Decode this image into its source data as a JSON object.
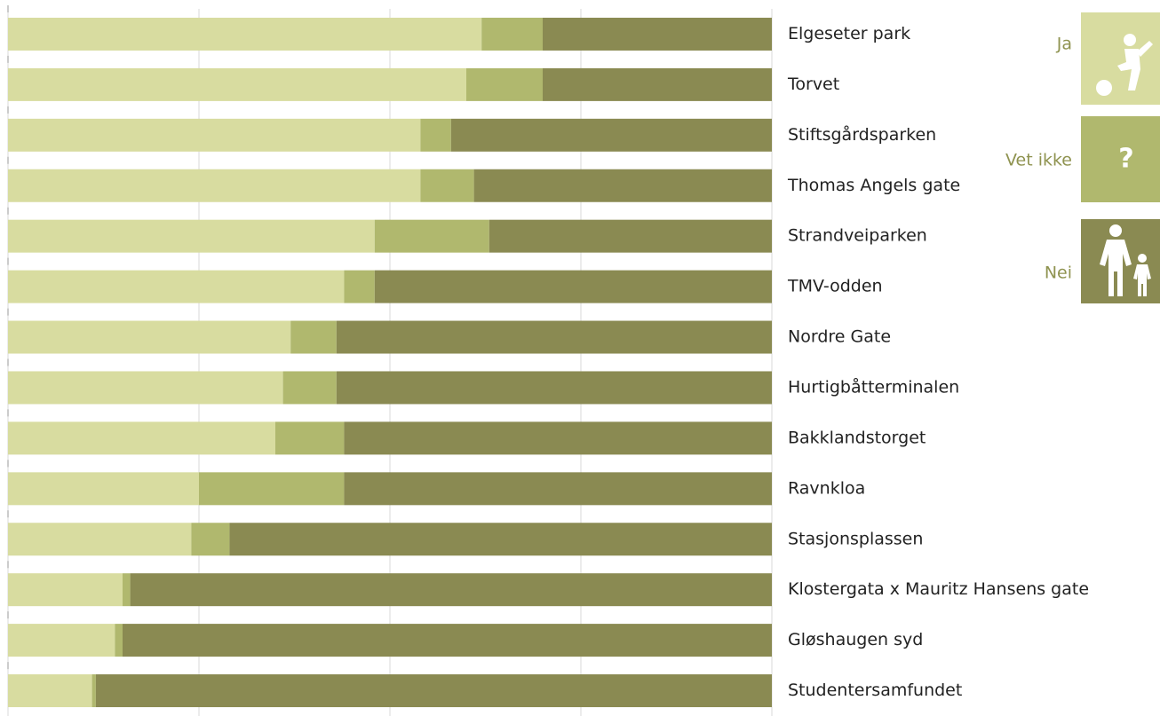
{
  "chart_data": {
    "type": "stacked-barh",
    "categories": [
      "Elgeseter park",
      "Torvet",
      "Stiftsgårdsparken",
      "Thomas Angels gate",
      "Strandveiparken",
      "TMV-odden",
      "Nordre Gate",
      "Hurtigbåtterminalen",
      "Bakklandstorget",
      "Ravnkloa",
      "Stasjonsplassen",
      "Klostergata x Mauritz Hansens gate",
      "Gløshaugen syd",
      "Studentersamfundet"
    ],
    "series": [
      {
        "name": "Ja",
        "color": "#d8dca0",
        "values": [
          62,
          60,
          54,
          54,
          48,
          44,
          37,
          36,
          35,
          25,
          24,
          15,
          14,
          11
        ]
      },
      {
        "name": "Vet ikke",
        "color": "#b0b86e",
        "values": [
          8,
          10,
          4,
          7,
          15,
          4,
          6,
          7,
          9,
          19,
          5,
          1,
          1,
          0.5
        ]
      },
      {
        "name": "Nei",
        "color": "#8a8a52",
        "values": [
          30,
          30,
          42,
          39,
          37,
          52,
          57,
          57,
          56,
          56,
          71,
          84,
          85,
          88.5
        ]
      }
    ],
    "xlim": [
      0,
      100
    ],
    "xticks": [
      0,
      25,
      50,
      75,
      100
    ],
    "grid": true,
    "legend": "right"
  }
}
